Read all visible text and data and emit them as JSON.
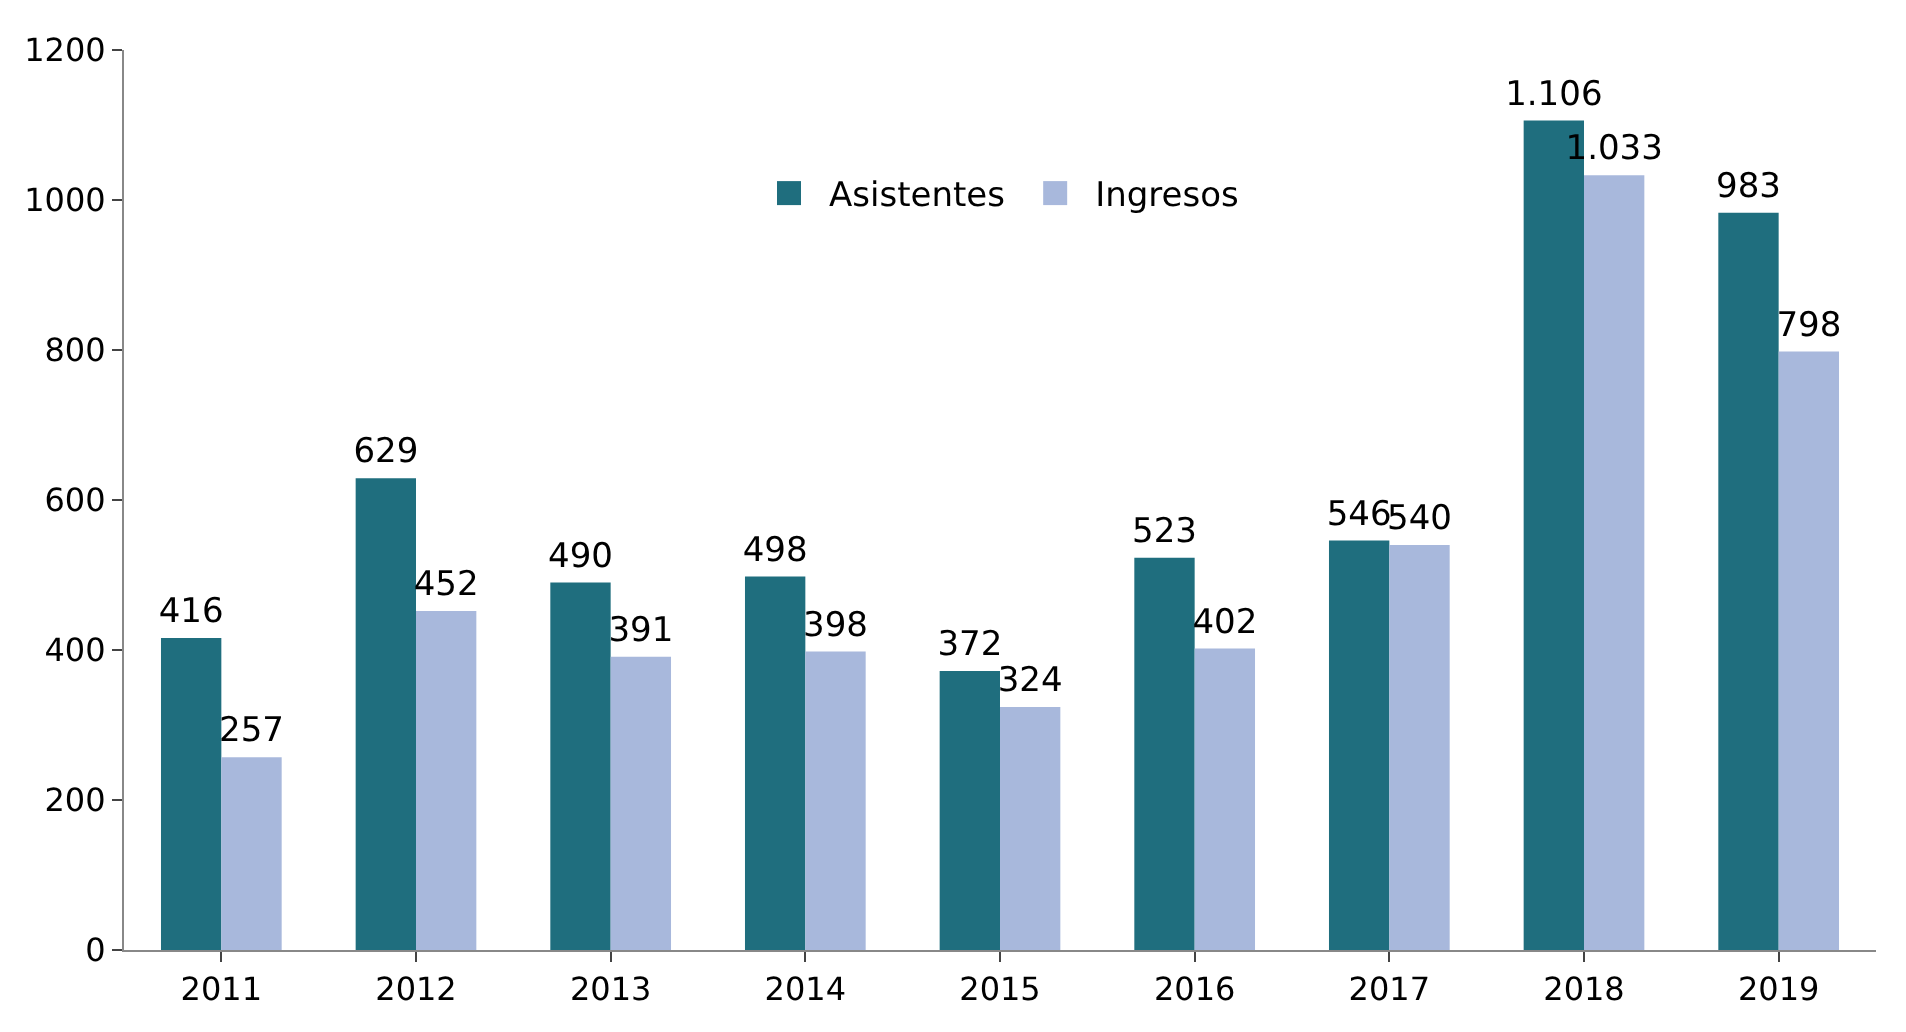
{
  "chart_data": {
    "type": "bar",
    "categories": [
      "2011",
      "2012",
      "2013",
      "2014",
      "2015",
      "2016",
      "2017",
      "2018",
      "2019"
    ],
    "series": [
      {
        "name": "Asistentes",
        "color": "#1f6e7e",
        "values": [
          416,
          629,
          490,
          498,
          372,
          523,
          546,
          1106,
          983
        ],
        "value_labels": [
          "416",
          "629",
          "490",
          "498",
          "372",
          "523",
          "546",
          "1.106",
          "983"
        ]
      },
      {
        "name": "Ingresos",
        "color": "#a8b8dc",
        "values": [
          257,
          452,
          391,
          398,
          324,
          402,
          540,
          1033,
          798
        ],
        "value_labels": [
          "257",
          "452",
          "391",
          "398",
          "324",
          "402",
          "540",
          "1.033",
          "798"
        ]
      }
    ],
    "ylim": [
      0,
      1200
    ],
    "yticks": [
      0,
      200,
      400,
      600,
      800,
      1000,
      1200
    ],
    "legend": "top"
  }
}
